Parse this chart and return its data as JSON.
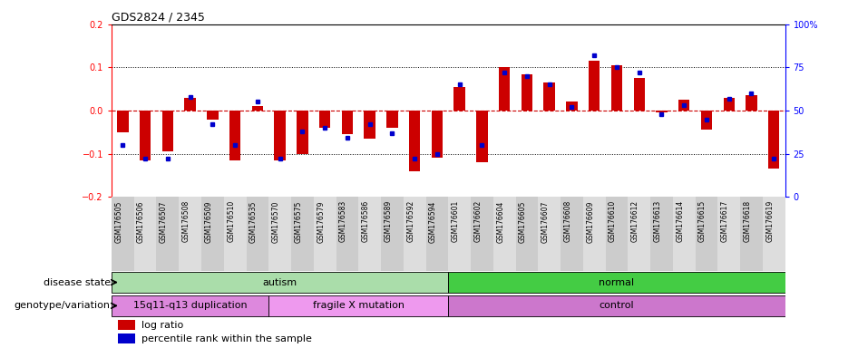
{
  "title": "GDS2824 / 2345",
  "samples": [
    "GSM176505",
    "GSM176506",
    "GSM176507",
    "GSM176508",
    "GSM176509",
    "GSM176510",
    "GSM176535",
    "GSM176570",
    "GSM176575",
    "GSM176579",
    "GSM176583",
    "GSM176586",
    "GSM176589",
    "GSM176592",
    "GSM176594",
    "GSM176601",
    "GSM176602",
    "GSM176604",
    "GSM176605",
    "GSM176607",
    "GSM176608",
    "GSM176609",
    "GSM176610",
    "GSM176612",
    "GSM176613",
    "GSM176614",
    "GSM176615",
    "GSM176617",
    "GSM176618",
    "GSM176619"
  ],
  "log_ratio": [
    -0.05,
    -0.115,
    -0.095,
    0.03,
    -0.02,
    -0.115,
    0.01,
    -0.115,
    -0.1,
    -0.04,
    -0.055,
    -0.065,
    -0.04,
    -0.14,
    -0.11,
    0.055,
    -0.12,
    0.1,
    0.085,
    0.065,
    0.02,
    0.115,
    0.105,
    0.075,
    -0.005,
    0.025,
    -0.045,
    0.03,
    0.035,
    -0.135
  ],
  "percentile_rank": [
    30,
    22,
    22,
    58,
    42,
    30,
    55,
    22,
    38,
    40,
    34,
    42,
    37,
    22,
    25,
    65,
    30,
    72,
    70,
    65,
    52,
    82,
    75,
    72,
    48,
    53,
    45,
    57,
    60,
    22
  ],
  "disease_state_groups": [
    {
      "label": "autism",
      "start": 0,
      "end": 14,
      "color": "#aaddaa"
    },
    {
      "label": "normal",
      "start": 15,
      "end": 29,
      "color": "#44cc44"
    }
  ],
  "genotype_groups": [
    {
      "label": "15q11-q13 duplication",
      "start": 0,
      "end": 6,
      "color": "#dd88dd"
    },
    {
      "label": "fragile X mutation",
      "start": 7,
      "end": 14,
      "color": "#ee99ee"
    },
    {
      "label": "control",
      "start": 15,
      "end": 29,
      "color": "#cc77cc"
    }
  ],
  "ylim_left": [
    -0.2,
    0.2
  ],
  "ylim_right": [
    0,
    100
  ],
  "yticks_left": [
    -0.2,
    -0.1,
    0.0,
    0.1,
    0.2
  ],
  "yticks_right": [
    0,
    25,
    50,
    75,
    100
  ],
  "bar_color": "#CC0000",
  "dot_color": "#0000CC",
  "bg_color": "#FFFFFF",
  "label_row1": "disease state",
  "label_row2": "genotype/variation",
  "legend_log": "log ratio",
  "legend_pct": "percentile rank within the sample"
}
